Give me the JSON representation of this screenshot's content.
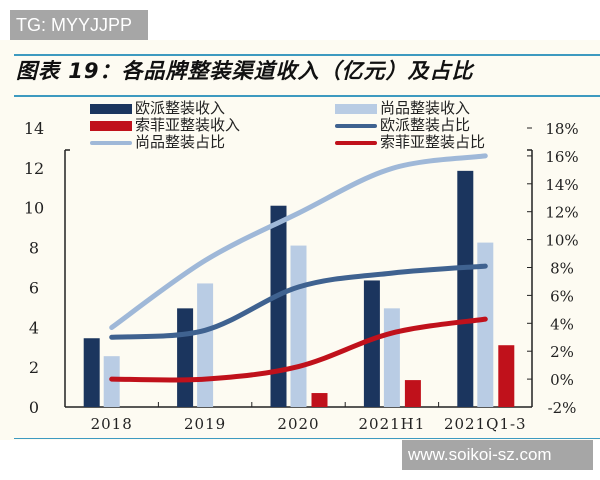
{
  "watermark_top": "TG: MYYJJPP",
  "watermark_bottom": "www.soikoi-sz.com",
  "chart_data": {
    "type": "bar",
    "title": "图表 19：各品牌整装渠道收入（亿元）及占比",
    "categories": [
      "2018",
      "2019",
      "2020",
      "2021H1",
      "2021Q1-3"
    ],
    "y_left": {
      "range": [
        0,
        14
      ],
      "ticks": [
        "0",
        "2",
        "4",
        "6",
        "8",
        "10",
        "12",
        "14"
      ]
    },
    "y_right": {
      "range": [
        -2,
        18
      ],
      "ticks": [
        "-2%",
        "0%",
        "2%",
        "4%",
        "6%",
        "8%",
        "10%",
        "12%",
        "14%",
        "16%",
        "18%"
      ]
    },
    "series": [
      {
        "name": "欧派整装收入",
        "kind": "bar",
        "axis": "left",
        "color": "#1b355e",
        "values": [
          3.45,
          4.95,
          10.1,
          6.35,
          11.85
        ]
      },
      {
        "name": "尚品整装收入",
        "kind": "bar",
        "axis": "left",
        "color": "#b9cce4",
        "values": [
          2.55,
          6.2,
          8.1,
          4.95,
          8.25
        ]
      },
      {
        "name": "索菲亚整装收入",
        "kind": "bar",
        "axis": "left",
        "color": "#c0111b",
        "values": [
          null,
          null,
          0.7,
          1.35,
          3.1
        ]
      },
      {
        "name": "欧派整装占比",
        "kind": "line",
        "axis": "right",
        "color": "#3f6290",
        "values": [
          3.0,
          3.5,
          6.6,
          7.6,
          8.1
        ]
      },
      {
        "name": "尚品整装占比",
        "kind": "line",
        "axis": "right",
        "color": "#9fb8d8",
        "values": [
          3.7,
          8.5,
          11.9,
          15.1,
          16.0
        ]
      },
      {
        "name": "索菲亚整装占比",
        "kind": "line",
        "axis": "right",
        "color": "#c0111b",
        "values": [
          0.0,
          0.0,
          0.9,
          3.3,
          4.3
        ]
      }
    ],
    "legend_placement": "top",
    "grid": false
  }
}
